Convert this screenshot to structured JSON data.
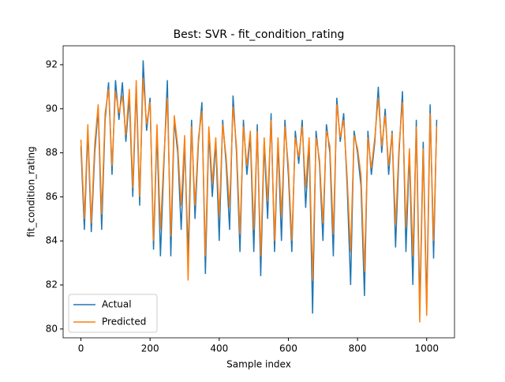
{
  "chart_data": {
    "type": "line",
    "title": "Best: SVR - fit_condition_rating",
    "xlabel": "Sample index",
    "ylabel": "fit_condition_rating",
    "x": [
      0,
      10,
      20,
      30,
      40,
      50,
      60,
      70,
      80,
      90,
      100,
      110,
      120,
      130,
      140,
      150,
      160,
      170,
      180,
      190,
      200,
      210,
      220,
      230,
      240,
      250,
      260,
      270,
      280,
      290,
      300,
      310,
      320,
      330,
      340,
      350,
      360,
      370,
      380,
      390,
      400,
      410,
      420,
      430,
      440,
      450,
      460,
      470,
      480,
      490,
      500,
      510,
      520,
      530,
      540,
      550,
      560,
      570,
      580,
      590,
      600,
      610,
      620,
      630,
      640,
      650,
      660,
      670,
      680,
      690,
      700,
      710,
      720,
      730,
      740,
      750,
      760,
      770,
      780,
      790,
      800,
      810,
      820,
      830,
      840,
      850,
      860,
      870,
      880,
      890,
      900,
      910,
      920,
      930,
      940,
      950,
      960,
      970,
      980,
      990,
      1000,
      1010,
      1020,
      1029
    ],
    "series": [
      {
        "name": "Actual",
        "color": "#1f77b4",
        "values": [
          88.3,
          84.5,
          89.0,
          84.4,
          88.0,
          90.0,
          84.5,
          89.5,
          91.2,
          87.0,
          91.3,
          89.5,
          91.2,
          88.5,
          90.5,
          86.0,
          91.0,
          85.6,
          92.2,
          89.0,
          90.5,
          83.6,
          89.0,
          83.3,
          87.5,
          91.3,
          83.3,
          89.5,
          88.0,
          84.5,
          88.5,
          83.3,
          89.5,
          85.0,
          88.5,
          90.3,
          82.5,
          89.0,
          86.0,
          88.5,
          84.0,
          89.5,
          87.5,
          84.5,
          90.6,
          88.0,
          83.5,
          89.5,
          87.0,
          88.8,
          83.5,
          89.3,
          82.4,
          88.5,
          85.0,
          89.8,
          83.5,
          88.5,
          84.0,
          89.5,
          87.0,
          83.5,
          89.0,
          87.5,
          89.5,
          85.5,
          88.5,
          80.7,
          89.0,
          87.5,
          84.0,
          89.3,
          88.0,
          83.3,
          90.5,
          88.5,
          89.8,
          86.5,
          82.0,
          89.0,
          88.0,
          86.5,
          81.5,
          89.0,
          87.0,
          88.5,
          91.0,
          88.0,
          90.0,
          87.0,
          89.0,
          83.7,
          88.0,
          90.8,
          83.5,
          88.0,
          82.0,
          89.5,
          80.9,
          88.5,
          81.0,
          90.2,
          83.2,
          89.5
        ]
      },
      {
        "name": "Predicted",
        "color": "#ff7f0e",
        "values": [
          88.6,
          85.0,
          89.3,
          84.8,
          88.4,
          90.2,
          85.2,
          89.8,
          90.9,
          87.4,
          90.8,
          89.8,
          90.6,
          88.8,
          90.9,
          86.4,
          91.3,
          86.0,
          91.4,
          89.3,
          90.3,
          84.0,
          89.3,
          84.5,
          87.8,
          90.5,
          84.2,
          89.7,
          88.3,
          85.6,
          88.8,
          82.2,
          89.2,
          85.6,
          88.7,
          89.9,
          83.3,
          89.2,
          86.6,
          88.7,
          85.1,
          89.3,
          87.8,
          85.5,
          90.1,
          88.3,
          84.3,
          89.2,
          87.4,
          89.0,
          84.5,
          89.0,
          83.3,
          88.7,
          85.8,
          89.5,
          84.0,
          88.7,
          85.1,
          89.2,
          87.4,
          84.0,
          88.7,
          87.8,
          89.2,
          86.4,
          88.7,
          82.2,
          88.7,
          87.7,
          84.8,
          89.0,
          88.3,
          84.3,
          90.2,
          88.7,
          89.5,
          86.9,
          83.5,
          88.8,
          88.2,
          87.0,
          82.6,
          88.7,
          87.3,
          88.7,
          90.5,
          88.3,
          89.7,
          87.4,
          88.9,
          84.7,
          88.3,
          90.3,
          84.6,
          88.2,
          83.3,
          89.2,
          80.3,
          88.2,
          80.6,
          89.8,
          84.0,
          89.2
        ]
      }
    ],
    "xlim": [
      -51.45,
      1080.45
    ],
    "ylim": [
      79.6,
      92.86
    ],
    "xticks": [
      0,
      200,
      400,
      600,
      800,
      1000
    ],
    "yticks": [
      80,
      82,
      84,
      86,
      88,
      90,
      92
    ],
    "legend": "lower left"
  }
}
